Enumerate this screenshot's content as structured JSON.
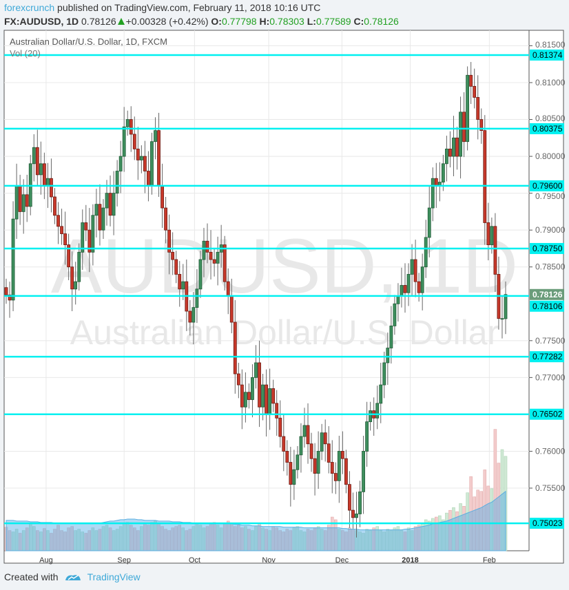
{
  "header": {
    "publisher": "forexcrunch",
    "published_text": "published on TradingView.com, February 11, 2018 10:16 UTC",
    "symbol": "FX:AUDUSD, 1D",
    "last": "0.78126",
    "change": "+0.00328 (+0.42%)",
    "o_label": "O:",
    "o": "0.77798",
    "h_label": "H:",
    "h": "0.78303",
    "l_label": "L:",
    "l": "0.77589",
    "c_label": "C:",
    "c": "0.78126"
  },
  "chart_title": "Australian Dollar/U.S. Dollar, 1D, FXCM",
  "volume_label": "Vol (20)",
  "watermark": {
    "symbol": "AUDUSD, 1D",
    "name": "Australian Dollar/U.S. Dollar"
  },
  "footer": {
    "created_with": "Created with",
    "brand": "TradingView"
  },
  "colors": {
    "up": "#3f8f5e",
    "down": "#c8392b",
    "level_line": "#00f0f0",
    "last_price": "#6a9c7a",
    "brand": "#3fa9d8"
  },
  "chart_data": {
    "type": "candlestick",
    "ylim": [
      0.7465,
      0.8185
    ],
    "y_ticks": [
      "0.81500",
      "0.81000",
      "0.80500",
      "0.80000",
      "0.79500",
      "0.79000",
      "0.78500",
      "0.77500",
      "0.77000",
      "0.76000",
      "0.75500"
    ],
    "x_ticks": [
      {
        "label": "Aug",
        "index": 11.5
      },
      {
        "label": "Sep",
        "index": 34
      },
      {
        "label": "Oct",
        "index": 54.3
      },
      {
        "label": "Nov",
        "index": 75.7
      },
      {
        "label": "Dec",
        "index": 96.8
      },
      {
        "label": "2018",
        "index": 116.5
      },
      {
        "label": "Feb",
        "index": 139.3
      }
    ],
    "levels": [
      "0.81374",
      "0.80375",
      "0.79600",
      "0.78750",
      "0.78106",
      "0.77282",
      "0.76502",
      "0.75023"
    ],
    "last_price": "0.78126",
    "close": [
      0.7812,
      0.7805,
      0.7915,
      0.796,
      0.7925,
      0.7948,
      0.7932,
      0.799,
      0.8012,
      0.7975,
      0.799,
      0.796,
      0.797,
      0.7945,
      0.792,
      0.7905,
      0.7895,
      0.788,
      0.785,
      0.782,
      0.783,
      0.787,
      0.791,
      0.79,
      0.787,
      0.792,
      0.7935,
      0.79,
      0.793,
      0.795,
      0.792,
      0.795,
      0.798,
      0.8,
      0.804,
      0.805,
      0.803,
      0.801,
      0.7995,
      0.8,
      0.798,
      0.796,
      0.802,
      0.8035,
      0.796,
      0.793,
      0.79,
      0.787,
      0.786,
      0.784,
      0.782,
      0.783,
      0.779,
      0.7775,
      0.7795,
      0.782,
      0.786,
      0.7885,
      0.787,
      0.786,
      0.7855,
      0.787,
      0.788,
      0.783,
      0.781,
      0.7775,
      0.7705,
      0.769,
      0.766,
      0.768,
      0.767,
      0.77,
      0.772,
      0.766,
      0.769,
      0.765,
      0.7685,
      0.7665,
      0.7645,
      0.762,
      0.76,
      0.7585,
      0.7555,
      0.7575,
      0.7595,
      0.762,
      0.7635,
      0.761,
      0.759,
      0.757,
      0.76,
      0.7625,
      0.761,
      0.7585,
      0.757,
      0.756,
      0.76,
      0.759,
      0.7555,
      0.752,
      0.751,
      0.7515,
      0.7545,
      0.76,
      0.764,
      0.7655,
      0.7645,
      0.7665,
      0.769,
      0.772,
      0.774,
      0.777,
      0.78,
      0.781,
      0.7825,
      0.7815,
      0.784,
      0.786,
      0.783,
      0.7815,
      0.785,
      0.789,
      0.793,
      0.797,
      0.796,
      0.7965,
      0.799,
      0.801,
      0.8,
      0.8025,
      0.8,
      0.806,
      0.802,
      0.811,
      0.8095,
      0.808,
      0.805,
      0.8035,
      0.791,
      0.788,
      0.7905,
      0.784,
      0.778,
      0.778,
      0.78126
    ],
    "last_candle": {
      "open": 0.77798,
      "high": 0.78303,
      "low": 0.77589,
      "close": 0.78126
    },
    "volume": [
      35,
      30,
      28,
      32,
      26,
      30,
      34,
      40,
      36,
      30,
      28,
      33,
      30,
      26,
      32,
      38,
      30,
      28,
      34,
      36,
      30,
      32,
      28,
      26,
      30,
      34,
      30,
      32,
      36,
      38,
      34,
      30,
      32,
      36,
      40,
      42,
      38,
      34,
      30,
      36,
      40,
      38,
      42,
      44,
      40,
      36,
      32,
      30,
      34,
      36,
      38,
      34,
      30,
      32,
      36,
      40,
      38,
      34,
      36,
      40,
      42,
      38,
      34,
      40,
      44,
      40,
      36,
      38,
      34,
      36,
      32,
      30,
      36,
      40,
      34,
      32,
      30,
      36,
      34,
      30,
      28,
      32,
      30,
      34,
      36,
      30,
      28,
      32,
      30,
      34,
      36,
      32,
      30,
      38,
      50,
      46,
      32,
      30,
      28,
      34,
      32,
      30,
      28,
      26,
      32,
      30,
      34,
      36,
      30,
      28,
      32,
      30,
      34,
      36,
      30,
      28,
      34,
      30,
      36,
      38,
      40,
      46,
      44,
      48,
      50,
      52,
      46,
      56,
      60,
      64,
      58,
      70,
      66,
      86,
      110,
      80,
      90,
      88,
      120,
      96,
      92,
      180,
      130,
      150,
      140
    ],
    "volume_ma": [
      45,
      45,
      45,
      44,
      44,
      44,
      44,
      43,
      43,
      43,
      42,
      42,
      42,
      42,
      41,
      41,
      41,
      41,
      41,
      41,
      40,
      40,
      40,
      40,
      40,
      40,
      41,
      41,
      42,
      43,
      44,
      44,
      45,
      46,
      46,
      47,
      47,
      47,
      46,
      46,
      45,
      45,
      45,
      45,
      44,
      44,
      44,
      44,
      43,
      43,
      43,
      42,
      42,
      42,
      41,
      41,
      41,
      41,
      41,
      40,
      40,
      40,
      40,
      40,
      40,
      40,
      39,
      39,
      38,
      38,
      38,
      37,
      37,
      37,
      36,
      36,
      36,
      36,
      36,
      36,
      35,
      35,
      35,
      35,
      35,
      35,
      34,
      34,
      34,
      34,
      34,
      34,
      34,
      34,
      34,
      34,
      34,
      33,
      33,
      32,
      32,
      32,
      31,
      31,
      31,
      31,
      31,
      31,
      31,
      31,
      31,
      31,
      31,
      31,
      31,
      32,
      32,
      33,
      34,
      35,
      36,
      37,
      38,
      40,
      41,
      42,
      43,
      44,
      46,
      48,
      50,
      52,
      54,
      56,
      58,
      60,
      62,
      64,
      67,
      70,
      72,
      76,
      80,
      84,
      88
    ]
  }
}
